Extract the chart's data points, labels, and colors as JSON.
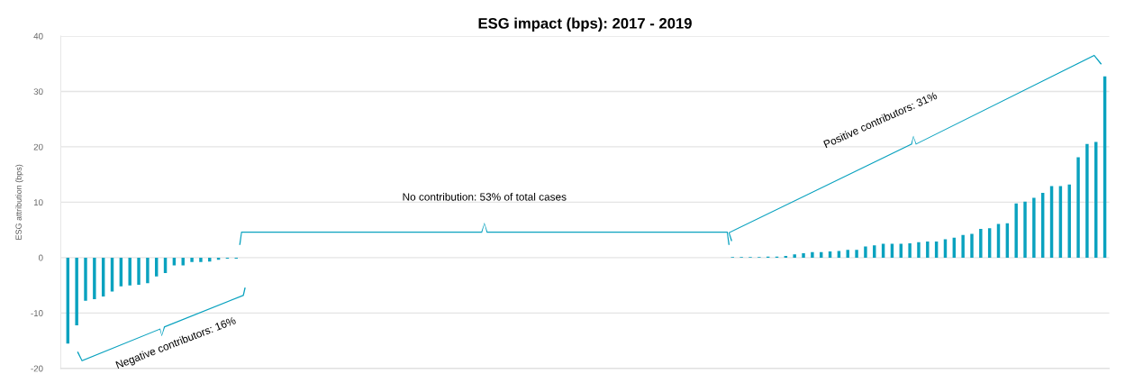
{
  "chart_data": {
    "type": "bar",
    "title": "ESG impact (bps): 2017 - 2019",
    "ylabel": "ESG attribution (bps)",
    "color": "#0aa2bf",
    "categories": [
      null,
      null,
      null,
      null,
      null,
      null,
      null,
      null,
      null,
      null,
      null,
      null,
      null,
      null,
      null,
      null,
      null,
      null,
      null,
      null,
      null,
      null,
      null,
      null,
      null,
      null,
      null,
      null,
      null,
      null,
      null,
      null,
      null,
      null,
      null,
      null,
      null,
      null,
      null,
      null,
      null,
      null,
      null,
      null,
      null,
      null,
      null,
      null,
      null,
      null,
      null,
      null,
      null,
      null,
      null,
      null,
      null,
      null,
      null,
      null,
      null,
      null,
      null,
      null,
      null,
      null,
      null,
      null,
      null,
      null,
      null,
      null,
      null,
      null,
      null,
      null,
      null,
      null,
      null,
      null,
      null,
      null,
      null,
      null,
      null,
      null,
      null,
      null,
      null,
      null,
      null,
      null,
      null,
      null,
      null,
      null,
      null,
      null,
      null,
      null,
      null,
      null,
      null,
      null,
      null,
      null,
      null,
      null,
      null,
      null,
      null,
      null,
      null,
      null,
      null,
      null,
      null,
      null
    ],
    "values": [
      -15.5,
      -12.2,
      -7.8,
      -7.5,
      -7.0,
      -6.1,
      -5.2,
      -5.0,
      -4.9,
      -4.6,
      -3.4,
      -2.8,
      -1.4,
      -1.4,
      -0.8,
      -0.8,
      -0.7,
      -0.4,
      -0.2,
      -0.2,
      0,
      0,
      0,
      0,
      0,
      0,
      0,
      0,
      0,
      0,
      0,
      0,
      0,
      0,
      0,
      0,
      0,
      0,
      0,
      0,
      0,
      0,
      0,
      0,
      0,
      0,
      0,
      0,
      0,
      0,
      0,
      0,
      0,
      0,
      0,
      0,
      0,
      0,
      0,
      0,
      0,
      0,
      0,
      0,
      0,
      0,
      0,
      0,
      0,
      0,
      0,
      0,
      0,
      0,
      0,
      0.1,
      0.1,
      0.1,
      0.1,
      0.2,
      0.2,
      0.3,
      0.6,
      0.8,
      1.0,
      1.0,
      1.1,
      1.2,
      1.4,
      1.4,
      2.0,
      2.2,
      2.5,
      2.5,
      2.5,
      2.6,
      2.8,
      2.9,
      2.9,
      3.3,
      3.6,
      4.1,
      4.3,
      5.2,
      5.3,
      6.1,
      6.2,
      9.8,
      10.1,
      10.8,
      11.7,
      12.9,
      12.9,
      13.2,
      18.1,
      20.5,
      20.9,
      32.7
    ],
    "ylim": [
      -20,
      40
    ],
    "yticks": [
      -20,
      -10,
      0,
      10,
      20,
      30,
      40
    ],
    "grid": "y",
    "annotations": [
      "Negative contributors: 16%",
      "No contribution: 53% of total cases",
      "Positive contributors: 31%"
    ]
  }
}
